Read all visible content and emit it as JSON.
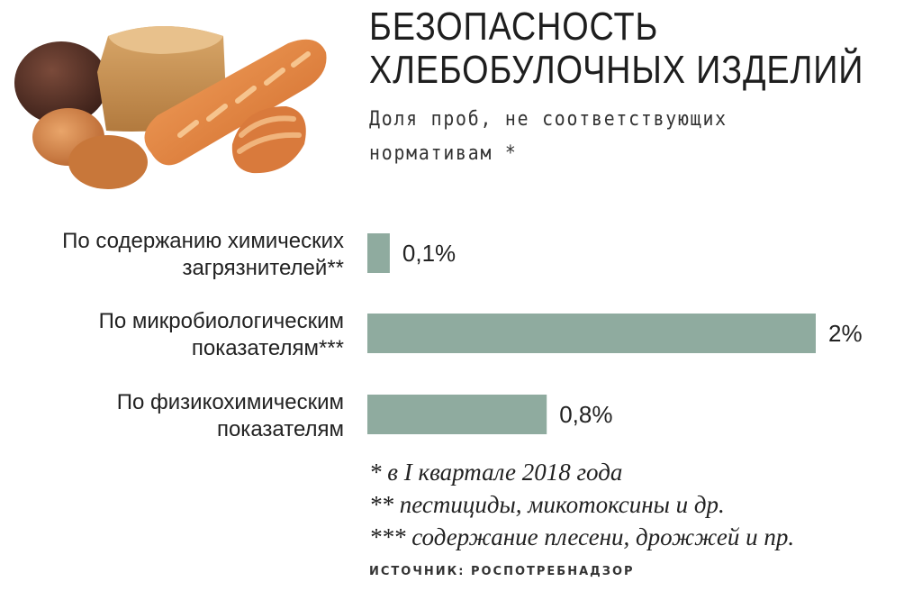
{
  "title_line1": "БЕЗОПАСНОСТЬ",
  "title_line2": "ХЛЕБОБУЛОЧНЫХ ИЗДЕЛИЙ",
  "subtitle_line1": "Доля проб, не соответствующих",
  "subtitle_line2": "нормативам *",
  "notes": [
    "* в I квартале 2018 года",
    "** пестициды, микотоксины и др.",
    "*** содержание плесени, дрожжей и пр."
  ],
  "source": "ИСТОЧНИК: РОСПОТРЕБНАДЗОР",
  "colors": {
    "bar": "#8fab9f",
    "text": "#222222"
  },
  "chart_data": {
    "type": "bar",
    "orientation": "horizontal",
    "categories": [
      [
        "По содержанию химических",
        "загрязнителей**"
      ],
      [
        "По микробиологическим",
        "показателям***"
      ],
      [
        "По физикохимическим",
        "показателям"
      ]
    ],
    "values": [
      0.1,
      2,
      0.8
    ],
    "value_labels": [
      "0,1%",
      "2%",
      "0,8%"
    ],
    "unit": "%",
    "xlim": [
      0,
      2
    ]
  }
}
